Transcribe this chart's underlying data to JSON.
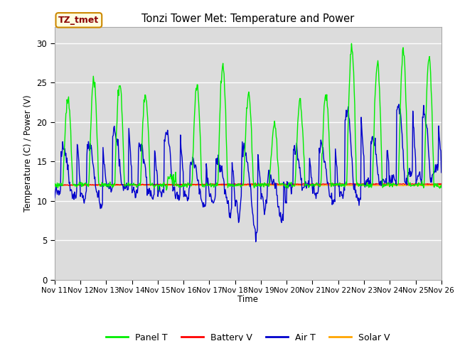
{
  "title": "Tonzi Tower Met: Temperature and Power",
  "ylabel": "Temperature (C) / Power (V)",
  "xlabel": "Time",
  "annotation_text": "TZ_tmet",
  "annotation_color": "#8B0000",
  "annotation_bg": "#FFFFE0",
  "annotation_border": "#CC8800",
  "ylim": [
    0,
    32
  ],
  "yticks": [
    0,
    5,
    10,
    15,
    20,
    25,
    30
  ],
  "bg_color": "#DCDCDC",
  "fig_color": "#FFFFFF",
  "legend_items": [
    "Panel T",
    "Battery V",
    "Air T",
    "Solar V"
  ],
  "legend_colors": [
    "#00EE00",
    "#FF0000",
    "#0000CC",
    "#FFA500"
  ],
  "panel_color": "#00EE00",
  "battery_color": "#FF0000",
  "air_color": "#0000CC",
  "solar_color": "#FFA500",
  "line_width": 1.0,
  "xtick_labels": [
    "Nov 11",
    "Nov 12",
    "Nov 13",
    "Nov 14",
    "Nov 15",
    "Nov 16",
    "Nov 17",
    "Nov 18",
    "Nov 19",
    "Nov 20",
    "Nov 21",
    "Nov 22",
    "Nov 23",
    "Nov 24",
    "Nov 25",
    "Nov 26"
  ],
  "grid_color": "#FFFFFF",
  "n_days": 15,
  "base_temp": 12.0,
  "battery_mean": 12.0,
  "solar_mean": 11.9
}
